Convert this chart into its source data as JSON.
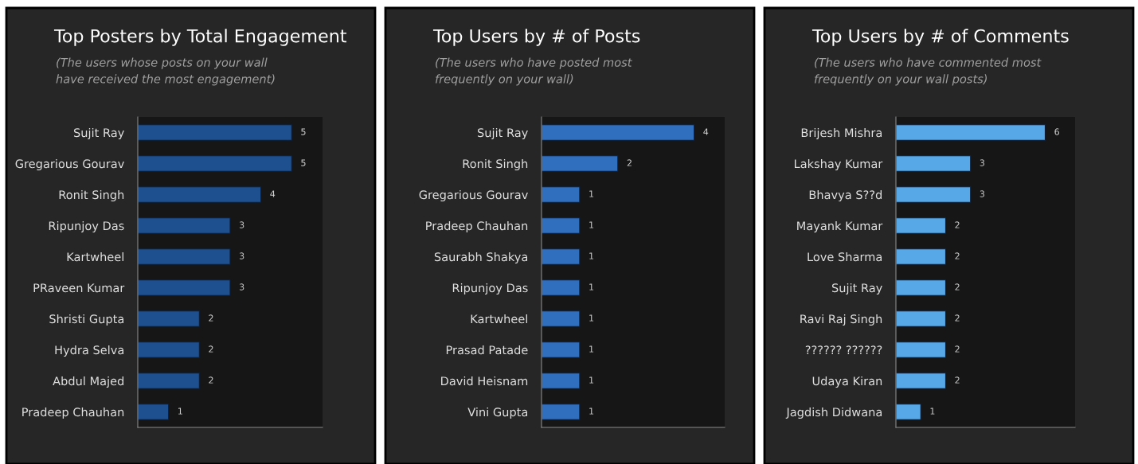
{
  "chart_data": [
    {
      "type": "bar",
      "orientation": "horizontal",
      "title": "Top Posters by Total Engagement",
      "subtitle": "(The users whose posts on your wall\nhave received the most engagement)",
      "categories": [
        "Sujit Ray",
        "Gregarious Gourav",
        "Ronit Singh",
        "Ripunjoy Das",
        "Kartwheel",
        "PRaveen Kumar",
        "Shristi Gupta",
        "Hydra Selva",
        "Abdul Majed",
        "Pradeep Chauhan"
      ],
      "values": [
        5,
        5,
        4,
        3,
        3,
        3,
        2,
        2,
        2,
        1
      ],
      "color": "#1e4f8f",
      "data_labels": true,
      "grid": false,
      "legend": false
    },
    {
      "type": "bar",
      "orientation": "horizontal",
      "title": "Top Users by # of Posts",
      "subtitle": "(The users who have posted most\nfrequently on your wall)",
      "categories": [
        "Sujit Ray",
        "Ronit Singh",
        "Gregarious Gourav",
        "Pradeep Chauhan",
        "Saurabh Shakya",
        "Ripunjoy Das",
        "Kartwheel",
        "Prasad Patade",
        "David Heisnam",
        "Vini Gupta"
      ],
      "values": [
        4,
        2,
        1,
        1,
        1,
        1,
        1,
        1,
        1,
        1
      ],
      "color": "#2f6fbe",
      "data_labels": true,
      "grid": false,
      "legend": false
    },
    {
      "type": "bar",
      "orientation": "horizontal",
      "title": "Top Users by # of Comments",
      "subtitle": "(The users who have commented most\nfrequently on your wall posts)",
      "categories": [
        "Brijesh Mishra",
        "Lakshay Kumar",
        "Bhavya S??d",
        "Mayank Kumar",
        "Love Sharma",
        "Sujit Ray",
        "Ravi Raj Singh",
        "?????? ??????",
        "Udaya Kiran",
        "Jagdish Didwana"
      ],
      "values": [
        6,
        3,
        3,
        2,
        2,
        2,
        2,
        2,
        2,
        1
      ],
      "color": "#56a8e6",
      "data_labels": true,
      "grid": false,
      "legend": false
    }
  ]
}
